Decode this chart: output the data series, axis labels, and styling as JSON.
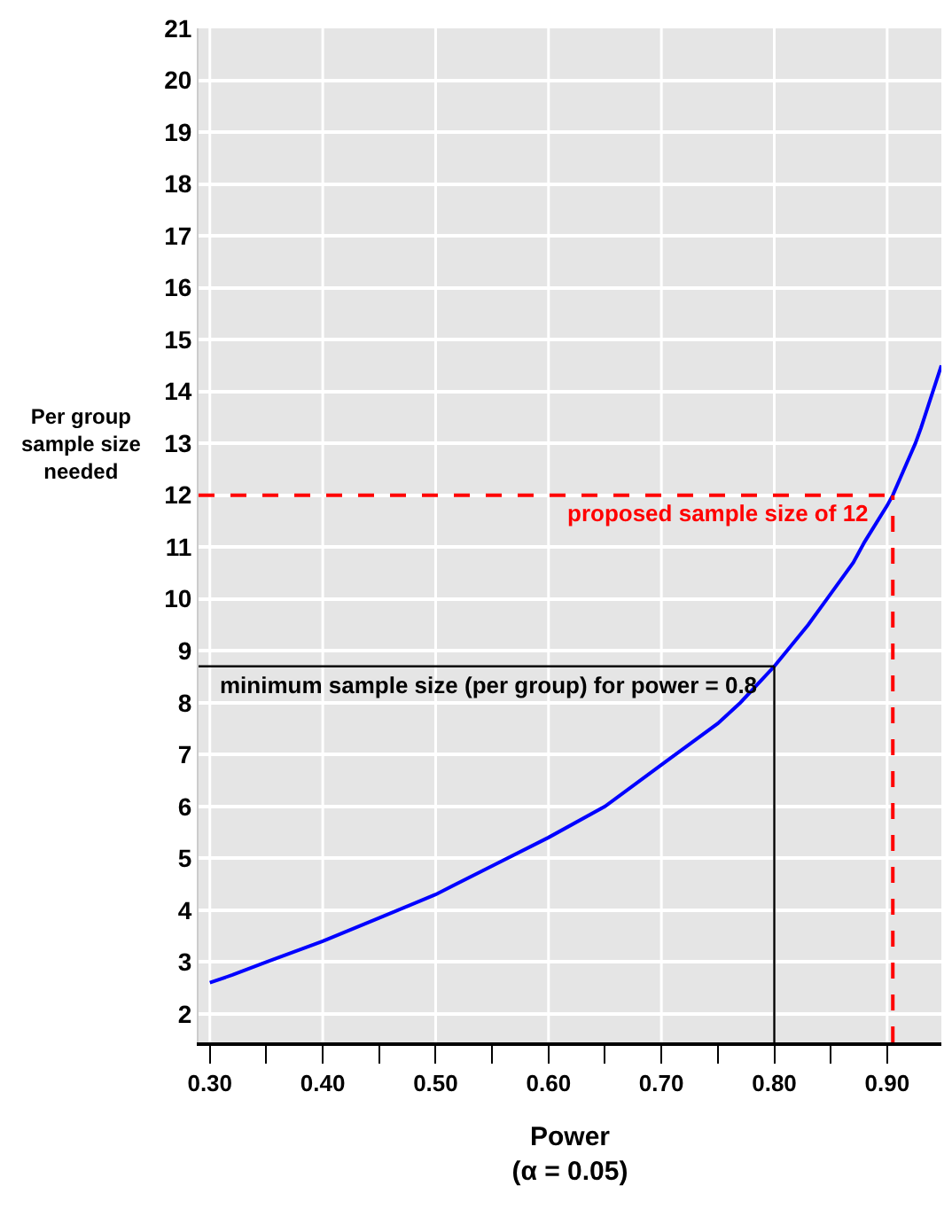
{
  "chart_data": {
    "type": "line",
    "xlabel": "Power\n(α = 0.05)",
    "ylabel": "Per group\nsample size\nneeded",
    "x": [
      0.3,
      0.32,
      0.35,
      0.4,
      0.45,
      0.5,
      0.55,
      0.6,
      0.65,
      0.7,
      0.75,
      0.77,
      0.8,
      0.83,
      0.85,
      0.87,
      0.88,
      0.9,
      0.905,
      0.925,
      0.93,
      0.948
    ],
    "series": [
      {
        "color": "#0000ff",
        "values": [
          2.6,
          2.75,
          3.0,
          3.4,
          3.85,
          4.3,
          4.85,
          5.4,
          6.0,
          6.8,
          7.6,
          8.0,
          8.7,
          9.5,
          10.1,
          10.7,
          11.1,
          11.8,
          12.0,
          13.0,
          13.3,
          14.5
        ]
      }
    ],
    "xlim": [
      0.29,
      0.948
    ],
    "ylim": [
      1.45,
      21
    ],
    "xticks": [
      {
        "value": 0.3,
        "label": "0.30"
      },
      {
        "value": 0.35,
        "label": null
      },
      {
        "value": 0.4,
        "label": "0.40"
      },
      {
        "value": 0.45,
        "label": null
      },
      {
        "value": 0.5,
        "label": "0.50"
      },
      {
        "value": 0.55,
        "label": null
      },
      {
        "value": 0.6,
        "label": "0.60"
      },
      {
        "value": 0.65,
        "label": null
      },
      {
        "value": 0.7,
        "label": "0.70"
      },
      {
        "value": 0.75,
        "label": null
      },
      {
        "value": 0.8,
        "label": "0.80"
      },
      {
        "value": 0.85,
        "label": null
      },
      {
        "value": 0.9,
        "label": "0.90"
      }
    ],
    "yticks": [
      2,
      3,
      4,
      5,
      6,
      7,
      8,
      9,
      10,
      11,
      12,
      13,
      14,
      15,
      16,
      17,
      18,
      19,
      20,
      21
    ],
    "grid": true,
    "legend": false,
    "marker": "none",
    "line_style": "solid",
    "ref_lines": [
      {
        "axis": "y",
        "value": 12,
        "label": "proposed sample size of 12",
        "color": "#ff0000",
        "line_style": "dashed"
      },
      {
        "axis": "x",
        "value": 0.905,
        "color": "#ff0000",
        "line_style": "dashed"
      },
      {
        "axis": "y",
        "value": 8.7,
        "color": "#000000",
        "line_style": "solid"
      },
      {
        "axis": "x",
        "value": 0.8,
        "label": "minimum sample size (per group) for power = 0.8",
        "color": "#000000",
        "line_style": "solid"
      }
    ]
  }
}
